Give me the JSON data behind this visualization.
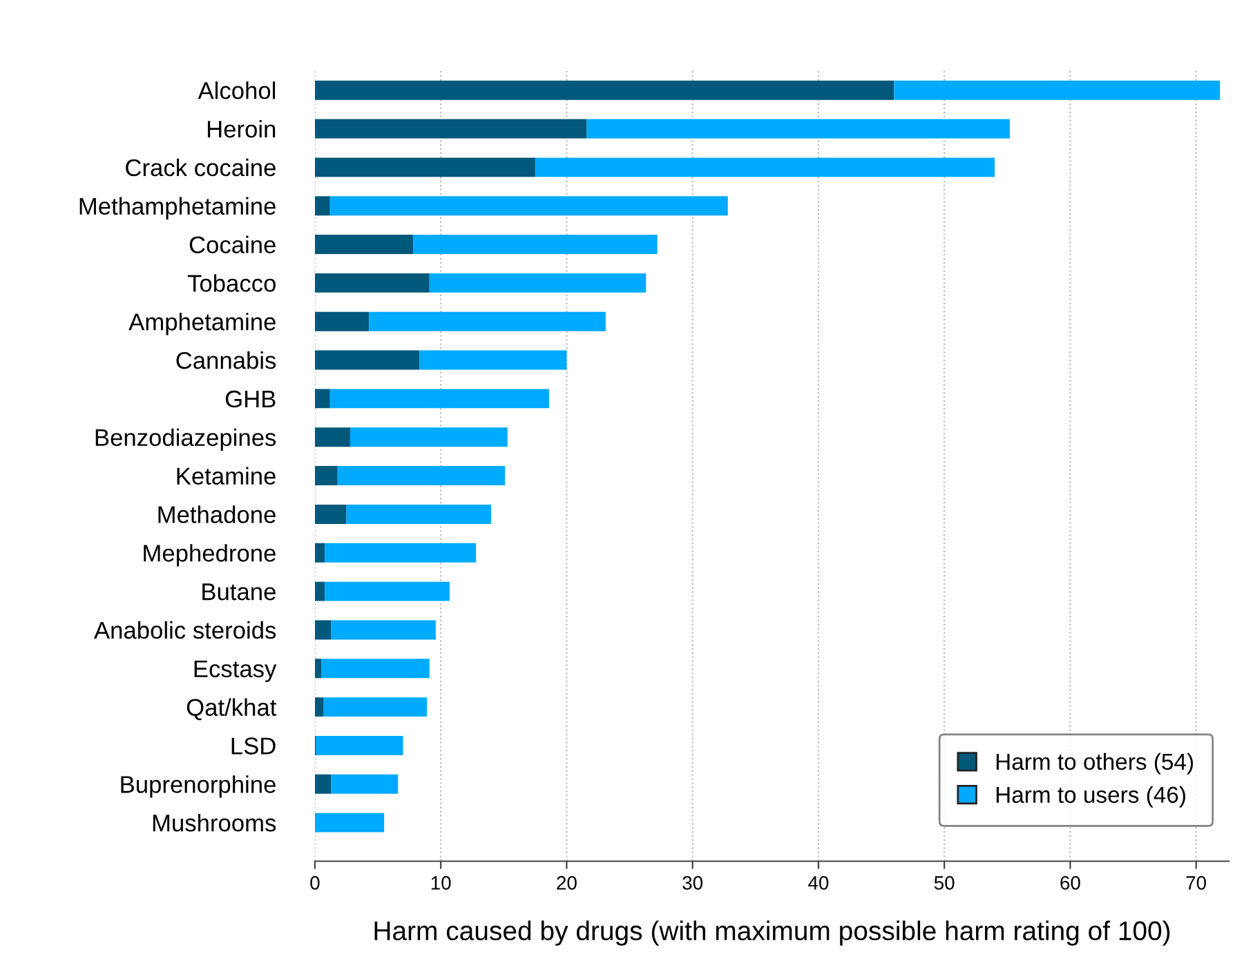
{
  "chart_data": {
    "type": "bar",
    "orientation": "horizontal",
    "stacked": true,
    "xlabel": "Harm caused by drugs (with maximum possible harm rating of 100)",
    "categories": [
      "Alcohol",
      "Heroin",
      "Crack cocaine",
      "Methamphetamine",
      "Cocaine",
      "Tobacco",
      "Amphetamine",
      "Cannabis",
      "GHB",
      "Benzodiazepines",
      "Ketamine",
      "Methadone",
      "Mephedrone",
      "Butane",
      "Anabolic steroids",
      "Ecstasy",
      "Qat/khat",
      "LSD",
      "Buprenorphine",
      "Mushrooms"
    ],
    "series": [
      {
        "name": "Harm to others (54)",
        "color": "#00587a",
        "values": [
          46.0,
          21.6,
          17.5,
          1.2,
          7.8,
          9.1,
          4.3,
          8.3,
          1.2,
          2.8,
          1.8,
          2.5,
          0.8,
          0.8,
          1.3,
          0.5,
          0.7,
          0.1,
          1.3,
          0
        ]
      },
      {
        "name": "Harm to users (46)",
        "color": "#00aaff",
        "values": [
          25.9,
          33.6,
          36.5,
          31.6,
          19.4,
          17.2,
          18.8,
          11.7,
          17.4,
          12.5,
          13.3,
          11.5,
          12.0,
          9.9,
          8.3,
          8.6,
          8.2,
          6.9,
          5.3,
          5.5
        ]
      }
    ],
    "xlim": [
      0,
      72.6
    ],
    "xticks": [
      0,
      10,
      20,
      30,
      40,
      50,
      60,
      70
    ],
    "grid": "x",
    "legend": "bottom right"
  }
}
